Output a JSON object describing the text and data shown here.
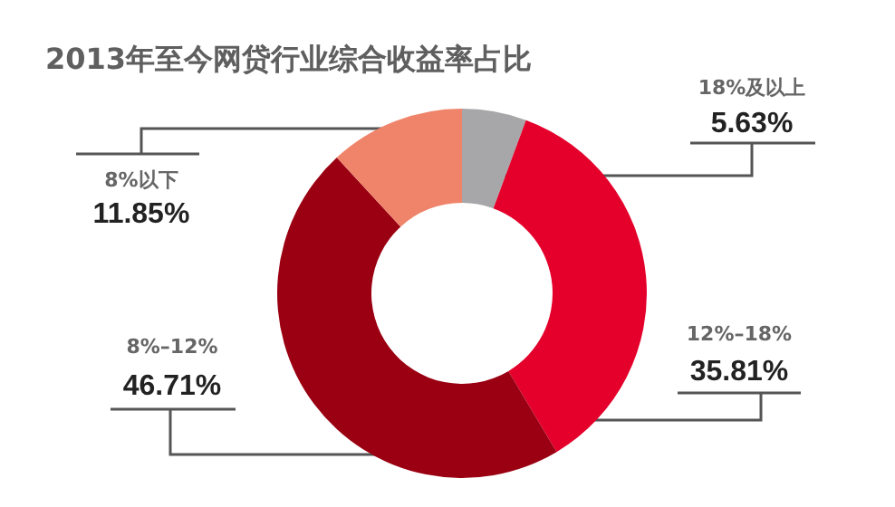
{
  "chart_data": {
    "type": "donut",
    "title": "2013年至今网贷行业综合收益率占比",
    "categories": [
      "18%及以上",
      "12%–18%",
      "8%–12%",
      "8%以下"
    ],
    "values": [
      5.63,
      35.81,
      46.71,
      11.85
    ],
    "value_labels": [
      "5.63%",
      "35.81%",
      "46.71%",
      "11.85%"
    ],
    "colors": [
      "#a7a7a9",
      "#e4002b",
      "#9a0012",
      "#ef846a"
    ]
  }
}
